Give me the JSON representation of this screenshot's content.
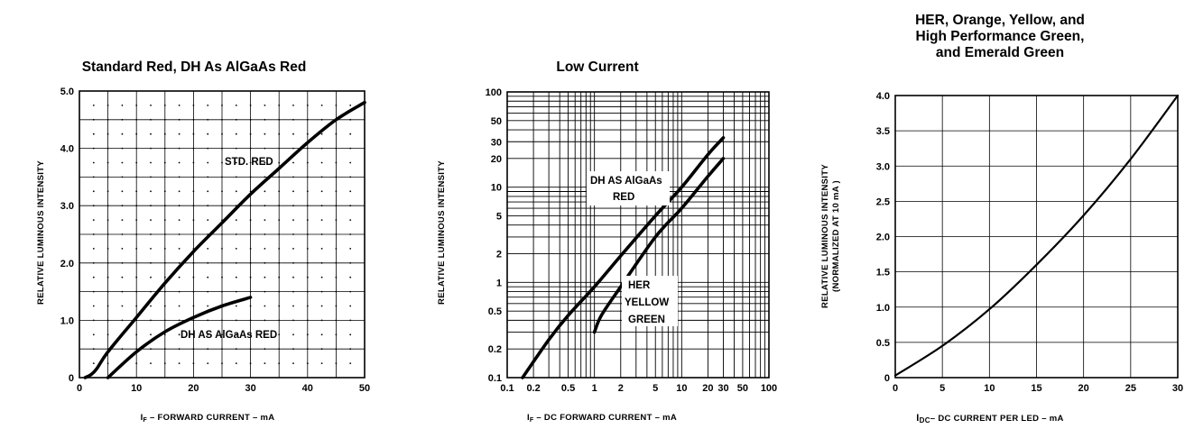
{
  "chart_data": [
    {
      "type": "line",
      "title": "Standard Red, DH As AlGaAs Red",
      "xlabel": "I_F – FORWARD CURRENT – mA",
      "ylabel": "RELATIVE LUMINOUS INTENSITY",
      "xlim": [
        0,
        50
      ],
      "ylim": [
        0,
        5.0
      ],
      "x_ticks": [
        "0",
        "10",
        "20",
        "30",
        "40",
        "50"
      ],
      "y_ticks": [
        "0",
        "1.0",
        "2.0",
        "3.0",
        "4.0",
        "5.0"
      ],
      "grid": true,
      "series": [
        {
          "name": "STD. RED",
          "x": [
            1,
            2,
            3,
            5,
            10,
            15,
            20,
            25,
            30,
            35,
            40,
            45,
            50
          ],
          "y": [
            0.0,
            0.05,
            0.15,
            0.45,
            1.05,
            1.65,
            2.2,
            2.7,
            3.2,
            3.65,
            4.1,
            4.5,
            4.8
          ]
        },
        {
          "name": "DH AS AlGaAs RED",
          "x": [
            5,
            10,
            15,
            20,
            25,
            30
          ],
          "y": [
            0.0,
            0.45,
            0.8,
            1.05,
            1.25,
            1.4
          ]
        }
      ]
    },
    {
      "type": "line",
      "title": "Low Current",
      "xlabel": "I_F – DC FORWARD CURRENT – mA",
      "ylabel": "RELATIVE LUMINOUS INTENSITY",
      "xscale": "log",
      "yscale": "log",
      "xlim": [
        0.1,
        100
      ],
      "ylim": [
        0.1,
        100
      ],
      "x_ticks": [
        "0.1",
        "0.2",
        "0.5",
        "1",
        "2",
        "5",
        "10",
        "20",
        "30",
        "50",
        "100"
      ],
      "y_ticks": [
        "0.1",
        "0.2",
        "0.5",
        "1",
        "2",
        "5",
        "10",
        "20",
        "30",
        "50",
        "100"
      ],
      "grid": true,
      "series": [
        {
          "name": "DH AS AlGaAs RED",
          "x": [
            0.15,
            0.3,
            0.5,
            1,
            2,
            5,
            10,
            20,
            30
          ],
          "y": [
            0.1,
            0.25,
            0.45,
            0.9,
            1.9,
            5.0,
            10,
            22,
            33
          ]
        },
        {
          "name": "HER YELLOW GREEN",
          "x": [
            1,
            1.2,
            2,
            5,
            10,
            20,
            30
          ],
          "y": [
            0.3,
            0.45,
            0.9,
            3.0,
            6.0,
            13,
            20
          ]
        }
      ]
    },
    {
      "type": "line",
      "title": "HER, Orange, Yellow, and High Performance Green, and Emerald Green",
      "title_lines": [
        "HER, Orange, Yellow, and",
        "High Performance Green,",
        "and Emerald Green"
      ],
      "xlabel": "I_DC – DC CURRENT PER LED – mA",
      "ylabel": "RELATIVE LUMINOUS INTENSITY",
      "ylabel2": "(NORMALIZED AT 10 mA )",
      "xlim": [
        0,
        30
      ],
      "ylim": [
        0,
        4.0
      ],
      "x_ticks": [
        "0",
        "5",
        "10",
        "15",
        "20",
        "25",
        "30"
      ],
      "y_ticks": [
        "0",
        "0.5",
        "1.0",
        "1.5",
        "2.0",
        "2.5",
        "3.0",
        "3.5",
        "4.0"
      ],
      "grid": true,
      "series": [
        {
          "name": "",
          "x": [
            0,
            5,
            10,
            15,
            20,
            25,
            30
          ],
          "y": [
            0.03,
            0.45,
            0.97,
            1.6,
            2.3,
            3.1,
            4.0
          ]
        }
      ]
    }
  ],
  "labels": {
    "c1_if_main": "I",
    "c1_if_sub": "F",
    "c1_xlabel_rest": " – FORWARD CURRENT – mA",
    "c1_series1": "STD. RED",
    "c1_series2": "DH AS AlGaAs RED",
    "c2_if_main": "I",
    "c2_if_sub": "F",
    "c2_xlabel_rest": " – DC FORWARD CURRENT – mA",
    "c2_s1_line1": "DH AS AlGaAs",
    "c2_s1_line2": "RED",
    "c2_s2_line1": "HER",
    "c2_s2_line2": "YELLOW",
    "c2_s2_line3": "GREEN",
    "c3_i_main": "I",
    "c3_i_sub": "DC",
    "c3_xlabel_rest": "– DC CURRENT PER LED – mA"
  }
}
